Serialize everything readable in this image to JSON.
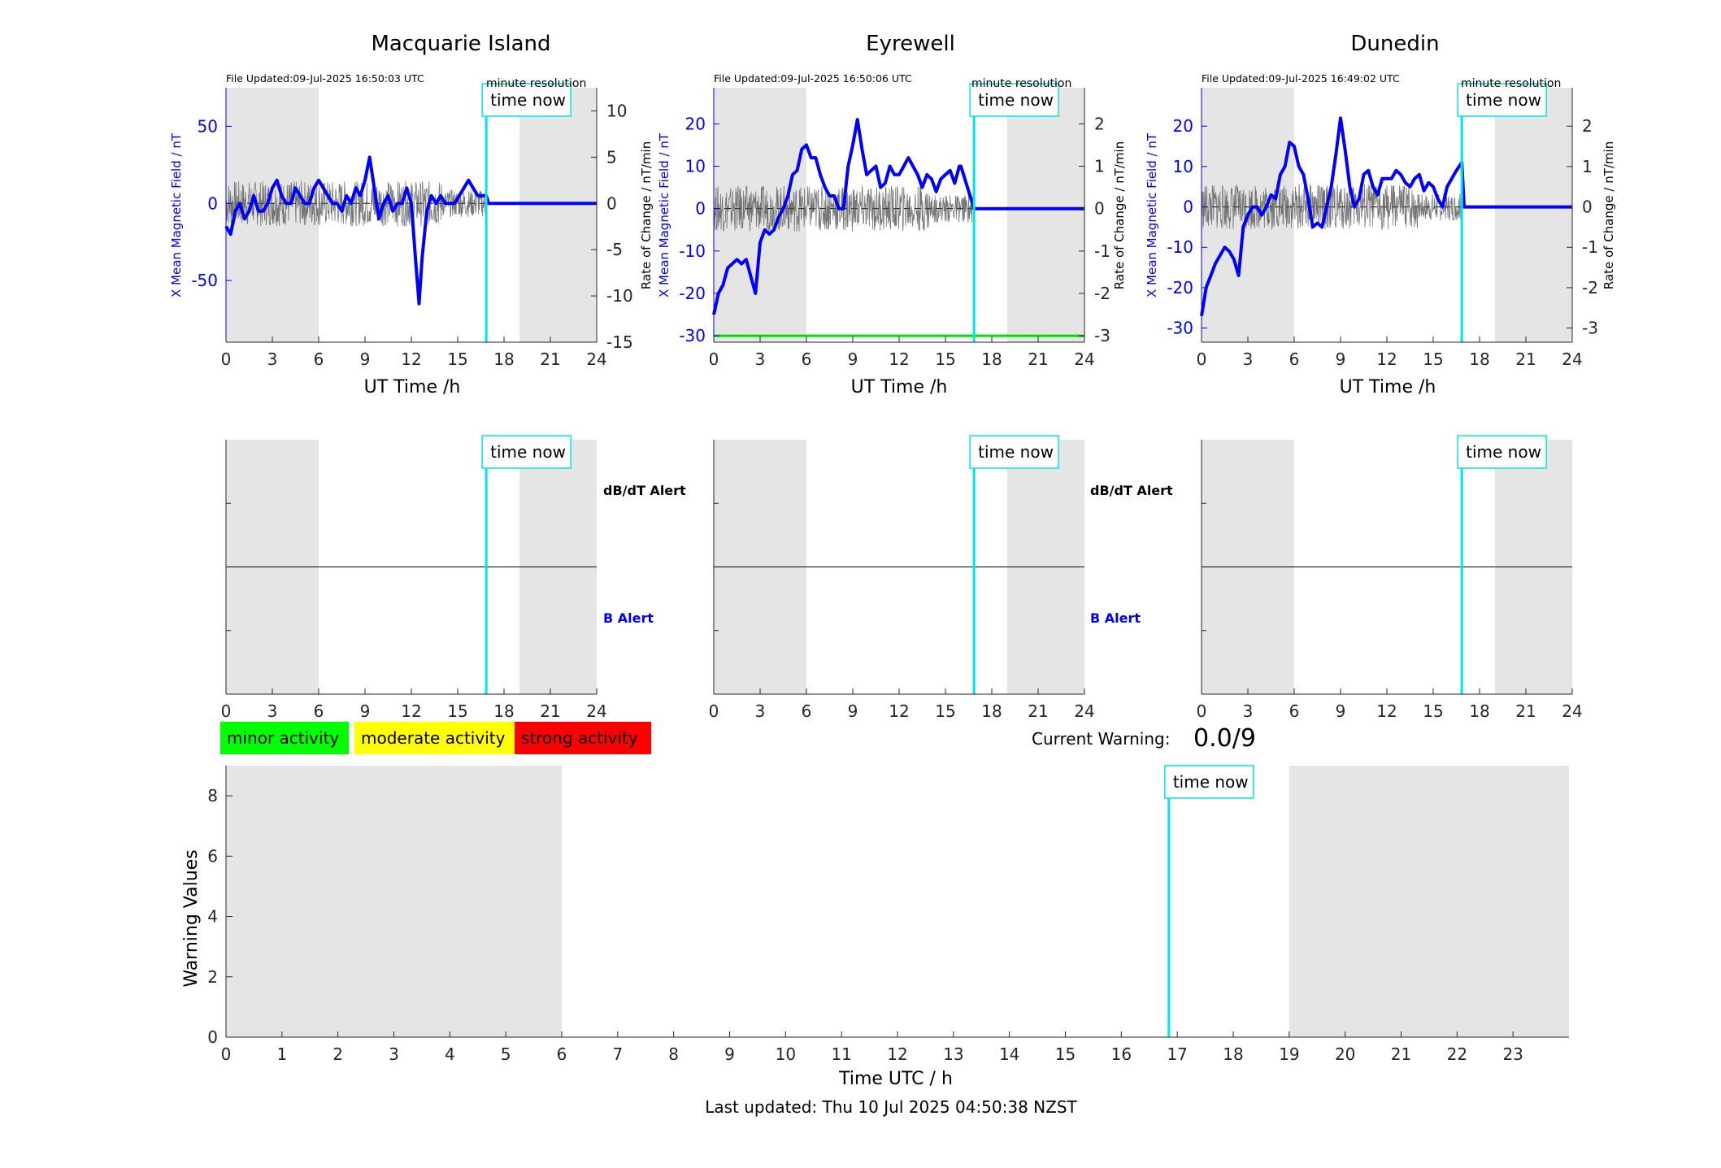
{
  "chart_data": [
    {
      "type": "line",
      "title": "Macquarie Island",
      "file_updated": "File Updated:09-Jul-2025 16:50:03 UTC",
      "resolution_note": "minute resolution",
      "time_now_label": "time now",
      "time_now": 16.85,
      "xlabel": "UT Time /h",
      "ylabel_left": "X Mean Magnetic Field / nT",
      "ylabel_right": "",
      "xlim": [
        0,
        24
      ],
      "ylim_left": [
        -90,
        75
      ],
      "ylim_right": [
        -15,
        12.5
      ],
      "yticks_left": [
        "50",
        "0",
        "-50"
      ],
      "yticks_left_values": [
        50,
        0,
        -50
      ],
      "yticks_right": [
        "10",
        "5",
        "0",
        "-5",
        "-10",
        "-15"
      ],
      "yticks_right_values": [
        10,
        5,
        0,
        -5,
        -10,
        -15
      ],
      "xticks": [
        "0",
        "3",
        "6",
        "9",
        "12",
        "15",
        "18",
        "21",
        "24"
      ],
      "shaded_night": [
        [
          0,
          6
        ],
        [
          19,
          24
        ]
      ],
      "series": [
        {
          "role": "field",
          "color": "#0000ff",
          "x": [
            0,
            0.3,
            0.6,
            0.9,
            1.2,
            1.5,
            1.8,
            2.1,
            2.4,
            2.7,
            3.0,
            3.3,
            3.6,
            3.9,
            4.2,
            4.5,
            4.8,
            5.1,
            5.4,
            5.7,
            6.0,
            6.3,
            6.6,
            6.9,
            7.2,
            7.5,
            7.8,
            8.1,
            8.4,
            8.7,
            9.0,
            9.3,
            9.6,
            9.9,
            10.2,
            10.5,
            10.8,
            11.1,
            11.4,
            11.7,
            12.0,
            12.3,
            12.5,
            12.7,
            13.0,
            13.3,
            13.6,
            13.9,
            14.2,
            14.5,
            14.8,
            15.1,
            15.4,
            15.7,
            16.0,
            16.3,
            16.6,
            16.85,
            17,
            18,
            19,
            20,
            21,
            22,
            23,
            24
          ],
          "values": [
            -15,
            -20,
            -5,
            0,
            -10,
            -5,
            5,
            -5,
            -5,
            0,
            10,
            15,
            5,
            0,
            0,
            10,
            5,
            0,
            0,
            10,
            15,
            10,
            5,
            0,
            0,
            -5,
            5,
            0,
            10,
            5,
            15,
            30,
            10,
            -10,
            0,
            5,
            -5,
            0,
            0,
            10,
            0,
            -40,
            -65,
            -35,
            -5,
            5,
            0,
            5,
            0,
            0,
            0,
            5,
            10,
            15,
            10,
            5,
            5,
            5,
            0,
            0,
            0,
            0,
            0,
            0,
            0,
            0
          ]
        }
      ]
    },
    {
      "type": "line",
      "title": "Eyrewell",
      "file_updated": "File Updated:09-Jul-2025 16:50:06 UTC",
      "resolution_note": "minute resolution",
      "time_now_label": "time now",
      "time_now": 16.85,
      "xlabel": "UT Time /h",
      "ylabel_left": "X Mean Magnetic Field / nT",
      "ylabel_right": "Rate of Change / nT/min",
      "xlim": [
        0,
        24
      ],
      "ylim_left": [
        -31.5,
        28.5
      ],
      "ylim_right": [
        -3.15,
        2.85
      ],
      "yticks_left": [
        "20",
        "10",
        "0",
        "-10",
        "-20",
        "-30"
      ],
      "yticks_left_values": [
        20,
        10,
        0,
        -10,
        -20,
        -30
      ],
      "yticks_right": [
        "2",
        "1",
        "0",
        "-1",
        "-2",
        "-3"
      ],
      "yticks_right_values": [
        2,
        1,
        0,
        -1,
        -2,
        -3
      ],
      "xticks": [
        "0",
        "3",
        "6",
        "9",
        "12",
        "15",
        "18",
        "21",
        "24"
      ],
      "shaded_night": [
        [
          0,
          6
        ],
        [
          19,
          24
        ]
      ],
      "threshold_line": -30,
      "series": [
        {
          "role": "field",
          "color": "#0000ff",
          "x": [
            0,
            0.3,
            0.6,
            0.9,
            1.2,
            1.5,
            1.8,
            2.1,
            2.4,
            2.7,
            3.0,
            3.3,
            3.6,
            3.9,
            4.2,
            4.5,
            4.8,
            5.1,
            5.4,
            5.7,
            6.0,
            6.3,
            6.6,
            6.9,
            7.2,
            7.5,
            7.8,
            8.1,
            8.4,
            8.7,
            9.0,
            9.3,
            9.6,
            9.9,
            10.2,
            10.5,
            10.8,
            11.1,
            11.4,
            11.7,
            12.0,
            12.3,
            12.6,
            12.9,
            13.2,
            13.5,
            13.8,
            14.1,
            14.4,
            14.7,
            15.0,
            15.3,
            15.6,
            15.9,
            16.0,
            16.85,
            17,
            18,
            19,
            20,
            21,
            22,
            23,
            24
          ],
          "values": [
            -25,
            -20,
            -18,
            -14,
            -13,
            -12,
            -13,
            -12,
            -16,
            -20,
            -8,
            -5,
            -6,
            -5,
            -2,
            0,
            3,
            8,
            9,
            14,
            15,
            12,
            12,
            8,
            5,
            3,
            3,
            0,
            0,
            10,
            15,
            21,
            14,
            8,
            9,
            10,
            5,
            6,
            10,
            8,
            8,
            10,
            12,
            10,
            8,
            5,
            8,
            7,
            4,
            7,
            8,
            9,
            6,
            10,
            10,
            0,
            0,
            0,
            0,
            0,
            0,
            0,
            0,
            0
          ]
        }
      ]
    },
    {
      "type": "line",
      "title": "Dunedin",
      "file_updated": "File Updated:09-Jul-2025 16:49:02 UTC",
      "resolution_note": "minute resolution",
      "time_now_label": "time now",
      "time_now": 16.85,
      "xlabel": "UT Time /h",
      "ylabel_left": "X Mean Magnetic Field / nT",
      "ylabel_right": "Rate of Change / nT/min",
      "xlim": [
        0,
        24
      ],
      "ylim_left": [
        -33.5,
        29.5
      ],
      "ylim_right": [
        -3.35,
        2.95
      ],
      "yticks_left": [
        "20",
        "10",
        "0",
        "-10",
        "-20",
        "-30"
      ],
      "yticks_left_values": [
        20,
        10,
        0,
        -10,
        -20,
        -30
      ],
      "yticks_right": [
        "2",
        "1",
        "0",
        "-1",
        "-2",
        "-3"
      ],
      "yticks_right_values": [
        2,
        1,
        0,
        -1,
        -2,
        -3
      ],
      "xticks": [
        "0",
        "3",
        "6",
        "9",
        "12",
        "15",
        "18",
        "21",
        "24"
      ],
      "shaded_night": [
        [
          0,
          6
        ],
        [
          19,
          24
        ]
      ],
      "series": [
        {
          "role": "field",
          "color": "#0000ff",
          "x": [
            0,
            0.3,
            0.6,
            0.9,
            1.2,
            1.5,
            1.8,
            2.1,
            2.4,
            2.7,
            3.0,
            3.3,
            3.6,
            3.9,
            4.2,
            4.5,
            4.8,
            5.1,
            5.4,
            5.7,
            6.0,
            6.3,
            6.6,
            6.9,
            7.2,
            7.5,
            7.8,
            8.1,
            8.4,
            8.7,
            9.0,
            9.3,
            9.6,
            9.9,
            10.2,
            10.5,
            10.8,
            11.1,
            11.4,
            11.7,
            12.0,
            12.3,
            12.6,
            12.9,
            13.2,
            13.5,
            13.8,
            14.1,
            14.4,
            14.7,
            15.0,
            15.3,
            15.6,
            15.9,
            16.2,
            16.5,
            16.85,
            17,
            18,
            19,
            20,
            21,
            22,
            23,
            24
          ],
          "values": [
            -27,
            -20,
            -17,
            -14,
            -12,
            -10,
            -11,
            -13,
            -17,
            -5,
            -2,
            0,
            0,
            -2,
            0,
            3,
            2,
            8,
            10,
            16,
            15,
            10,
            8,
            2,
            -5,
            -4,
            -5,
            0,
            5,
            13,
            22,
            14,
            5,
            0,
            2,
            8,
            9,
            5,
            3,
            7,
            7,
            7,
            9,
            8,
            6,
            5,
            7,
            8,
            4,
            6,
            5,
            2,
            0,
            5,
            7,
            9,
            11,
            0,
            0,
            0,
            0,
            0,
            0,
            0,
            0
          ]
        }
      ]
    },
    {
      "type": "line",
      "title": "",
      "panel": "alerts",
      "time_now_label": "time now",
      "time_now": 16.85,
      "labels": [
        "dB/dT Alert",
        "B Alert"
      ],
      "xlim": [
        0,
        24
      ],
      "xticks": [
        "0",
        "3",
        "6",
        "9",
        "12",
        "15",
        "18",
        "21",
        "24"
      ],
      "shaded_night": [
        [
          0,
          6
        ],
        [
          19,
          24
        ]
      ]
    },
    {
      "type": "bar",
      "title": "",
      "xlabel": "Time UTC / h",
      "ylabel": "Warning Values",
      "xlim": [
        0,
        24
      ],
      "ylim": [
        0,
        9
      ],
      "xticks": [
        "0",
        "1",
        "2",
        "3",
        "4",
        "5",
        "6",
        "7",
        "8",
        "9",
        "10",
        "11",
        "12",
        "13",
        "14",
        "15",
        "16",
        "17",
        "18",
        "19",
        "20",
        "21",
        "22",
        "23"
      ],
      "yticks": [
        "0",
        "2",
        "4",
        "6",
        "8"
      ],
      "yticks_values": [
        0,
        2,
        4,
        6,
        8
      ],
      "shaded_night": [
        [
          0,
          6
        ],
        [
          19,
          24
        ]
      ],
      "time_now_label": "time now",
      "time_now": 16.85,
      "values": []
    }
  ],
  "legend": {
    "minor": {
      "label": "minor activity",
      "color": "#00ff00"
    },
    "moderate": {
      "label": "moderate activity",
      "color": "#ffff00"
    },
    "strong": {
      "label": "strong activity",
      "color": "#ff0000"
    }
  },
  "current_warning": {
    "label": "Current Warning:",
    "value": "0.0/9"
  },
  "footer": {
    "last_updated": "Last updated: Thu 10 Jul 2025 04:50:38 NZST"
  },
  "colors": {
    "field": "#0000ff",
    "time_now": "#00e5e5",
    "night": "#e5e5e5",
    "threshold": "#00dd00",
    "axis": "#262626"
  }
}
